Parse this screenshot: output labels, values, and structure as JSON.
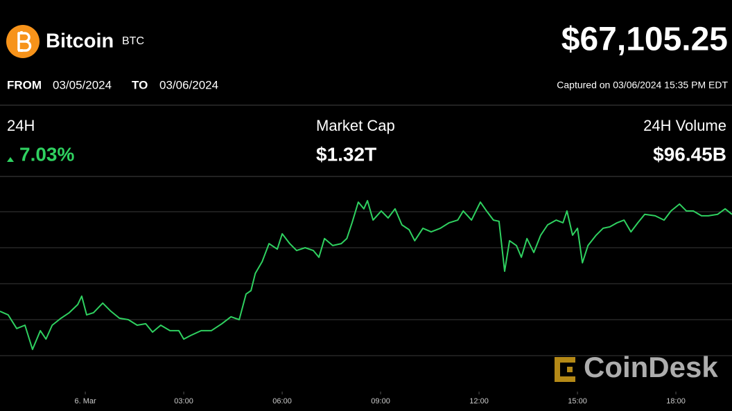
{
  "header": {
    "name": "Bitcoin",
    "symbol": "BTC",
    "price": "$67,105.25"
  },
  "range": {
    "from_label": "FROM",
    "from": "03/05/2024",
    "to_label": "TO",
    "to": "03/06/2024"
  },
  "captured": "Captured on 03/06/2024 15:35 PM EDT",
  "stats": [
    {
      "label": "24H",
      "value": "7.03%"
    },
    {
      "label": "Market Cap",
      "value": "$1.32T"
    },
    {
      "label": "24H Volume",
      "value": "$96.45B"
    }
  ],
  "watermark": "CoinDesk",
  "chart_data": {
    "type": "line",
    "color": "#2fd160",
    "grid": true,
    "xlim": [
      -2.6,
      19.71
    ],
    "ylim": [
      60000,
      68970
    ],
    "xticks": [
      {
        "value": 0,
        "label": "6. Mar"
      },
      {
        "value": 3,
        "label": "03:00"
      },
      {
        "value": 6,
        "label": "06:00"
      },
      {
        "value": 9,
        "label": "09:00"
      },
      {
        "value": 12,
        "label": "12:00"
      },
      {
        "value": 15,
        "label": "15:00"
      },
      {
        "value": 18,
        "label": "18:00"
      }
    ],
    "yticks": [
      61500,
      63000,
      64500,
      66000,
      67500
    ],
    "x": [
      -2.6,
      -2.35,
      -2.09,
      -1.84,
      -1.61,
      -1.37,
      -1.2,
      -1.01,
      -0.74,
      -0.49,
      -0.23,
      -0.11,
      0.04,
      0.25,
      0.53,
      0.78,
      1.04,
      1.31,
      1.58,
      1.84,
      2.05,
      2.3,
      2.58,
      2.85,
      3.0,
      3.21,
      3.53,
      3.84,
      4.16,
      4.44,
      4.69,
      4.9,
      5.05,
      5.18,
      5.39,
      5.6,
      5.85,
      6.0,
      6.23,
      6.44,
      6.7,
      6.95,
      7.12,
      7.29,
      7.54,
      7.8,
      7.97,
      8.13,
      8.32,
      8.49,
      8.6,
      8.77,
      9.02,
      9.23,
      9.44,
      9.65,
      9.87,
      10.04,
      10.29,
      10.54,
      10.82,
      11.09,
      11.35,
      11.52,
      11.77,
      12.04,
      12.23,
      12.44,
      12.61,
      12.78,
      12.93,
      13.14,
      13.29,
      13.46,
      13.67,
      13.88,
      14.09,
      14.35,
      14.56,
      14.68,
      14.85,
      15.0,
      15.15,
      15.32,
      15.57,
      15.78,
      15.99,
      16.21,
      16.42,
      16.63,
      16.84,
      17.05,
      17.37,
      17.64,
      17.85,
      18.11,
      18.32,
      18.53,
      18.78,
      18.99,
      19.27,
      19.5,
      19.71
    ],
    "values": [
      63350,
      63200,
      62630,
      62770,
      61760,
      62540,
      62190,
      62770,
      63060,
      63290,
      63630,
      63980,
      63200,
      63290,
      63690,
      63350,
      63060,
      63000,
      62770,
      62830,
      62480,
      62770,
      62540,
      62540,
      62190,
      62340,
      62540,
      62540,
      62830,
      63120,
      63000,
      64070,
      64210,
      64930,
      65420,
      66170,
      65940,
      66580,
      66170,
      65880,
      66000,
      65880,
      65600,
      66380,
      66090,
      66170,
      66380,
      67040,
      67900,
      67620,
      67960,
      67150,
      67530,
      67240,
      67620,
      66950,
      66750,
      66290,
      66810,
      66660,
      66810,
      67040,
      67150,
      67530,
      67150,
      67900,
      67530,
      67150,
      67100,
      65020,
      66290,
      66090,
      65600,
      66380,
      65800,
      66520,
      66950,
      67150,
      67040,
      67530,
      66520,
      66810,
      65370,
      66090,
      66520,
      66810,
      66870,
      67040,
      67150,
      66660,
      67040,
      67390,
      67330,
      67150,
      67530,
      67820,
      67530,
      67530,
      67330,
      67330,
      67390,
      67620,
      67390
    ]
  }
}
